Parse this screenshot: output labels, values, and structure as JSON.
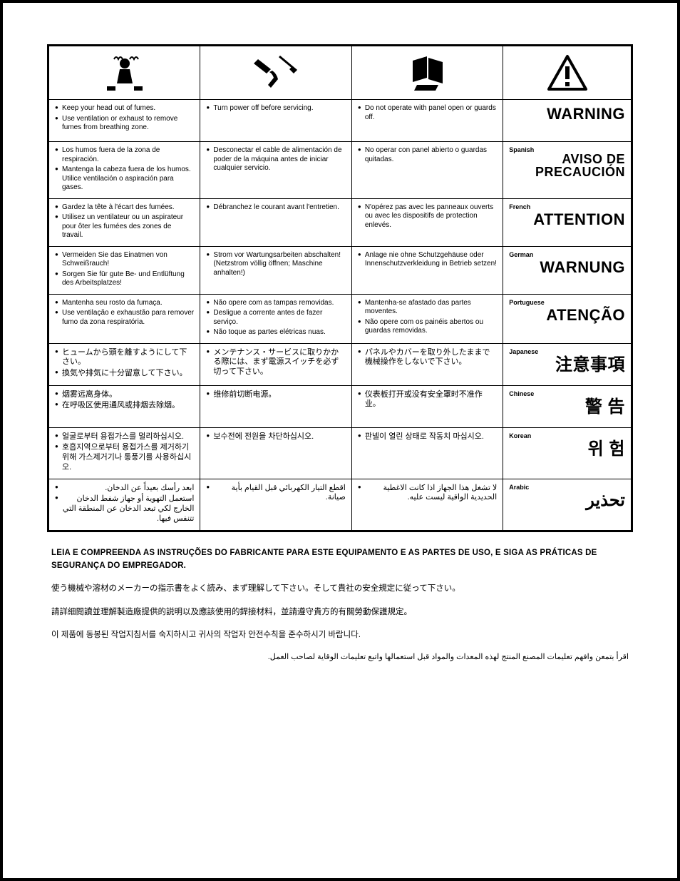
{
  "icons": [
    "fumes",
    "power",
    "panel",
    "warning-triangle"
  ],
  "rows": [
    {
      "lang_label": "",
      "warn": "WARNING",
      "warn_size": "22px",
      "c1": [
        "Keep your head out of fumes.",
        "Use ventilation or exhaust to remove fumes from breathing zone."
      ],
      "c2": [
        "Turn power off before servicing."
      ],
      "c3": [
        "Do not operate with panel open or guards off."
      ]
    },
    {
      "lang_label": "Spanish",
      "warn": "AVISO DE PRECAUCIÓN",
      "warn_size": "18px",
      "c1": [
        "Los humos fuera de la zona de respiración.",
        "Mantenga la cabeza fuera de los humos. Utilice ventilación o aspiración para gases."
      ],
      "c2": [
        "Desconectar el cable de alimentación de poder de la máquina antes de iniciar cualquier servicio."
      ],
      "c3": [
        "No operar con panel abierto o guardas quitadas."
      ]
    },
    {
      "lang_label": "French",
      "warn": "ATTENTION",
      "warn_size": "22px",
      "c1": [
        "Gardez la tête à l'écart des fumées.",
        "Utilisez un ventilateur ou un aspirateur pour ôter les fumées des zones de travail."
      ],
      "c2": [
        "Débranchez le courant avant l'entretien."
      ],
      "c3": [
        "N'opérez pas avec les panneaux ouverts ou avec les dispositifs de protection enlevés."
      ]
    },
    {
      "lang_label": "German",
      "warn": "WARNUNG",
      "warn_size": "22px",
      "c1": [
        "Vermeiden Sie das Einatmen von Schweißrauch!",
        "Sorgen Sie für gute Be- und Entlüftung des Arbeitsplatzes!"
      ],
      "c2": [
        "Strom vor Wartungsarbeiten abschalten! (Netzstrom völlig öffnen; Maschine anhalten!)"
      ],
      "c3": [
        "Anlage nie ohne Schutzgehäuse oder Innenschutzverkleidung in Betrieb setzen!"
      ]
    },
    {
      "lang_label": "Portuguese",
      "warn": "ATENÇÃO",
      "warn_size": "22px",
      "c1": [
        "Mantenha seu rosto da fumaça.",
        "Use ventilação e exhaustão para remover fumo da zona respiratória."
      ],
      "c2": [
        "Não opere com as tampas removidas.",
        "Desligue a corrente antes de fazer serviço.",
        "Não toque as partes elétricas nuas."
      ],
      "c3": [
        "Mantenha-se afastado das partes moventes.",
        "Não opere com os painéis abertos ou guardas removidas."
      ]
    },
    {
      "lang_label": "Japanese",
      "warn": "注意事項",
      "warn_size": "24px",
      "cjk": true,
      "c1": [
        "ヒュームから頭を離すようにして下さい。",
        "換気や排気に十分留意して下さい。"
      ],
      "c2": [
        "メンテナンス・サービスに取りかかる際には、まず電源スイッチを必ず切って下さい。"
      ],
      "c3": [
        "パネルやカバーを取り外したままで機械操作をしないで下さい。"
      ]
    },
    {
      "lang_label": "Chinese",
      "warn": "警 告",
      "warn_size": "24px",
      "cjk": true,
      "c1": [
        "烟雾远离身体。",
        "在呼吸区使用通风或排烟去除烟。"
      ],
      "c2": [
        "维修前切断电源。"
      ],
      "c3": [
        "仪表板打开或没有安全罩时不准作业。"
      ]
    },
    {
      "lang_label": "Korean",
      "warn": "위 험",
      "warn_size": "24px",
      "cjk": true,
      "c1": [
        "얼굴로부터 용접가스를 멀리하십시오.",
        "호흡지역으로부터 용접가스를 제거하기 위해 가스제거기나 통풍기를 사용하십시오."
      ],
      "c2": [
        "보수전에 전원을 차단하십시오."
      ],
      "c3": [
        "판넬이 열린 상태로 작동치 마십시오."
      ]
    },
    {
      "lang_label": "Arabic",
      "warn": "تحذير",
      "warn_size": "24px",
      "ar": true,
      "c1": [
        "ابعد رأسك بعيداً عن الدخان.",
        "استعمل التهوية أو جهاز شفط الدخان الخارج لكي تبعد الدخان عن المنطقة التي تتنفس فيها."
      ],
      "c2": [
        "اقطع التيار الكهربائي قبل القيام بأية صيانة."
      ],
      "c3": [
        "لا تشغل هذا الجهاز اذا كانت الاغطية الحديدية الواقية ليست عليه."
      ]
    }
  ],
  "footer": {
    "pt": "LEIA E COMPREENDA AS INSTRUÇÕES DO FABRICANTE PARA ESTE EQUIPAMENTO E AS PARTES DE USO, E SIGA AS PRÁTICAS DE SEGURANÇA DO EMPREGADOR.",
    "ja": "使う機械や溶材のメーカーの指示書をよく読み、まず理解して下さい。そして貴社の安全規定に従って下さい。",
    "zh": "請詳細閱讀並理解製造廠提供的説明以及應該使用的銲接材料，並請遵守貴方的有關勞動保護規定。",
    "ko": "이 제품에 동봉된 작업지침서를 숙지하시고 귀사의 작업자 안전수칙을 준수하시기 바랍니다.",
    "ar": "اقرأ بتمعن وافهم تعليمات المصنع المنتج لهذه المعدات والمواد قبل استعمالها واتبع تعليمات الوقاية لصاحب العمل."
  }
}
